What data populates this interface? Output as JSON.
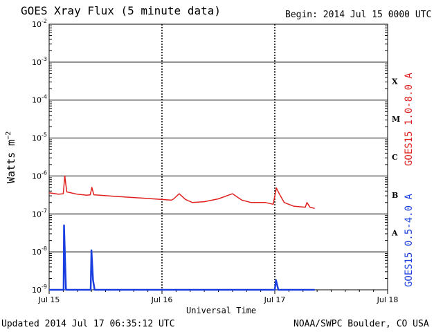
{
  "header": {
    "title": "GOES Xray Flux (5 minute data)",
    "begin": "Begin:  2014 Jul 15 0000 UTC"
  },
  "footer": {
    "updated": "Updated 2014 Jul 17 06:35:12 UTC",
    "credit": "NOAA/SWPC Boulder, CO USA"
  },
  "chart_data": {
    "type": "line",
    "title": "GOES Xray Flux (5 minute data)",
    "xlabel": "Universal Time",
    "ylabel": "Watts m-2",
    "yscale": "log",
    "ylim": [
      1e-09,
      0.01
    ],
    "xlim": [
      "Jul 15 00:00",
      "Jul 18 00:00"
    ],
    "x_ticks": [
      "Jul 15",
      "Jul 16",
      "Jul 17",
      "Jul 18"
    ],
    "y_ticks": [
      {
        "value": 1e-09,
        "base": "10",
        "exp": "-9"
      },
      {
        "value": 1e-08,
        "base": "10",
        "exp": "-8"
      },
      {
        "value": 1e-07,
        "base": "10",
        "exp": "-7"
      },
      {
        "value": 1e-06,
        "base": "10",
        "exp": "-6"
      },
      {
        "value": 1e-05,
        "base": "10",
        "exp": "-5"
      },
      {
        "value": 0.0001,
        "base": "10",
        "exp": "-4"
      },
      {
        "value": 0.001,
        "base": "10",
        "exp": "-3"
      },
      {
        "value": 0.01,
        "base": "10",
        "exp": "-2"
      }
    ],
    "flare_classes": [
      {
        "label": "X",
        "level": 0.0001
      },
      {
        "label": "M",
        "level": 1e-05
      },
      {
        "label": "C",
        "level": 1e-06
      },
      {
        "label": "B",
        "level": 1e-07
      },
      {
        "label": "A",
        "level": 1e-08
      }
    ],
    "grid": true,
    "series": [
      {
        "name": "GOES15 1.0-8.0 A",
        "color": "#e0201e",
        "points": [
          [
            "Jul 15 00:00",
            3.6e-07
          ],
          [
            "Jul 15 02:00",
            3.3e-07
          ],
          [
            "Jul 15 03:00",
            3.4e-07
          ],
          [
            "Jul 15 03:20",
            1e-06
          ],
          [
            "Jul 15 03:45",
            3.8e-07
          ],
          [
            "Jul 15 06:00",
            3.3e-07
          ],
          [
            "Jul 15 08:00",
            3.1e-07
          ],
          [
            "Jul 15 08:45",
            3.2e-07
          ],
          [
            "Jul 15 09:05",
            5e-07
          ],
          [
            "Jul 15 09:30",
            3.2e-07
          ],
          [
            "Jul 15 14:00",
            2.9e-07
          ],
          [
            "Jul 15 20:00",
            2.6e-07
          ],
          [
            "Jul 16 00:00",
            2.4e-07
          ],
          [
            "Jul 16 02:00",
            2.3e-07
          ],
          [
            "Jul 16 02:30",
            2.5e-07
          ],
          [
            "Jul 16 03:40",
            3.4e-07
          ],
          [
            "Jul 16 05:00",
            2.4e-07
          ],
          [
            "Jul 16 06:30",
            2e-07
          ],
          [
            "Jul 16 09:00",
            2.1e-07
          ],
          [
            "Jul 16 12:00",
            2.5e-07
          ],
          [
            "Jul 16 15:00",
            3.4e-07
          ],
          [
            "Jul 16 17:00",
            2.3e-07
          ],
          [
            "Jul 16 19:00",
            2e-07
          ],
          [
            "Jul 16 22:00",
            2e-07
          ],
          [
            "Jul 16 23:40",
            1.8e-07
          ],
          [
            "Jul 17 00:20",
            4.8e-07
          ],
          [
            "Jul 17 01:00",
            3.3e-07
          ],
          [
            "Jul 17 02:00",
            2e-07
          ],
          [
            "Jul 17 04:00",
            1.6e-07
          ],
          [
            "Jul 17 06:30",
            1.5e-07
          ],
          [
            "Jul 17 06:50",
            2e-07
          ],
          [
            "Jul 17 07:30",
            1.5e-07
          ],
          [
            "Jul 17 08:30",
            1.4e-07
          ]
        ]
      },
      {
        "name": "GOES15 0.5-4.0 A",
        "color": "#1a3fe0",
        "points": [
          [
            "Jul 15 00:00",
            1e-09
          ],
          [
            "Jul 15 03:05",
            1e-09
          ],
          [
            "Jul 15 03:10",
            5e-08
          ],
          [
            "Jul 15 03:35",
            1e-09
          ],
          [
            "Jul 15 08:50",
            1e-09
          ],
          [
            "Jul 15 09:00",
            1.1e-08
          ],
          [
            "Jul 15 09:20",
            1.8e-09
          ],
          [
            "Jul 15 09:40",
            1e-09
          ],
          [
            "Jul 17 00:00",
            1e-09
          ],
          [
            "Jul 17 00:15",
            1.8e-09
          ],
          [
            "Jul 17 00:45",
            1e-09
          ],
          [
            "Jul 17 08:30",
            1e-09
          ]
        ]
      }
    ]
  }
}
